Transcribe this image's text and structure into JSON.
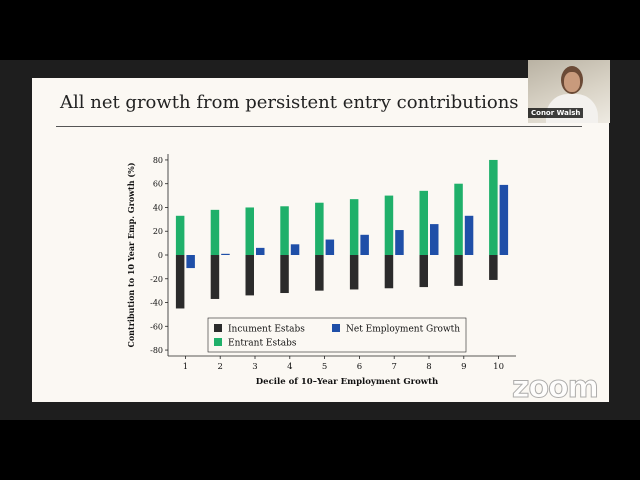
{
  "slide": {
    "title": "All net growth from persistent entry contributions"
  },
  "participant": {
    "name": "Conor Walsh"
  },
  "app": {
    "logo": "zoom"
  },
  "colors": {
    "incumbent": "#2b2b2b",
    "entrant": "#1fb06a",
    "net": "#1f4fa8"
  },
  "chart_data": {
    "type": "bar",
    "categories": [
      "1",
      "2",
      "3",
      "4",
      "5",
      "6",
      "7",
      "8",
      "9",
      "10"
    ],
    "series": [
      {
        "name": "Incument Estabs",
        "values": [
          -45,
          -37,
          -34,
          -32,
          -30,
          -29,
          -28,
          -27,
          -26,
          -21
        ]
      },
      {
        "name": "Entrant Estabs",
        "values": [
          33,
          38,
          40,
          41,
          44,
          47,
          50,
          54,
          60,
          80
        ]
      },
      {
        "name": "Net Employment Growth",
        "values": [
          -11,
          1,
          6,
          9,
          13,
          17,
          21,
          26,
          33,
          59
        ]
      }
    ],
    "xlabel": "Decile of 10–Year Employment Growth",
    "ylabel": "Contribution to 10 Year Emp. Growth (%)",
    "ylim": [
      -85,
      85
    ],
    "yticks": [
      -80,
      -60,
      -40,
      -20,
      0,
      20,
      40,
      60,
      80
    ],
    "grid": false,
    "legend": "bottom-left"
  }
}
